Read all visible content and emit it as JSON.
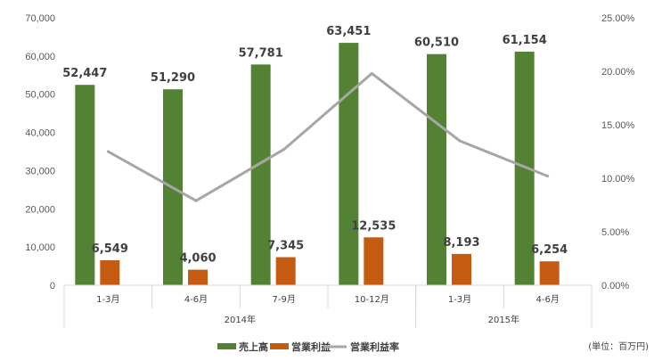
{
  "chart_data": {
    "type": "bar",
    "categories": [
      "1-3月",
      "4-6月",
      "7-9月",
      "10-12月",
      "1-3月",
      "4-6月"
    ],
    "groups": [
      {
        "label": "2014年",
        "span": 4
      },
      {
        "label": "2015年",
        "span": 2
      }
    ],
    "series": [
      {
        "name": "売上高",
        "kind": "bar",
        "axis": "left",
        "color": "#548235",
        "values": [
          52447,
          51290,
          57781,
          63451,
          60510,
          61154
        ],
        "labels": [
          "52,447",
          "51,290",
          "57,781",
          "63,451",
          "60,510",
          "61,154"
        ]
      },
      {
        "name": "営業利益",
        "kind": "bar",
        "axis": "left",
        "color": "#C55A11",
        "values": [
          6549,
          4060,
          7345,
          12535,
          8193,
          6254
        ],
        "labels": [
          "6,549",
          "4,060",
          "7,345",
          "12,535",
          "8,193",
          "6,254"
        ]
      },
      {
        "name": "営業利益率",
        "kind": "line",
        "axis": "right",
        "color": "#A6A6A6",
        "values": [
          12.5,
          7.9,
          12.7,
          19.8,
          13.5,
          10.2
        ]
      }
    ],
    "y_left": {
      "min": 0,
      "max": 70000,
      "ticks": [
        0,
        10000,
        20000,
        30000,
        40000,
        50000,
        60000,
        70000
      ],
      "tick_labels": [
        "0",
        "10,000",
        "20,000",
        "30,000",
        "40,000",
        "50,000",
        "60,000",
        "70,000"
      ]
    },
    "y_right": {
      "min": 0,
      "max": 25,
      "ticks": [
        0,
        5,
        10,
        15,
        20,
        25
      ],
      "tick_labels": [
        "0.00%",
        "5.00%",
        "10.00%",
        "15.00%",
        "20.00%",
        "25.00%"
      ]
    },
    "grid": false,
    "legend_position": "bottom",
    "unit_note": "(単位：百万円)"
  }
}
